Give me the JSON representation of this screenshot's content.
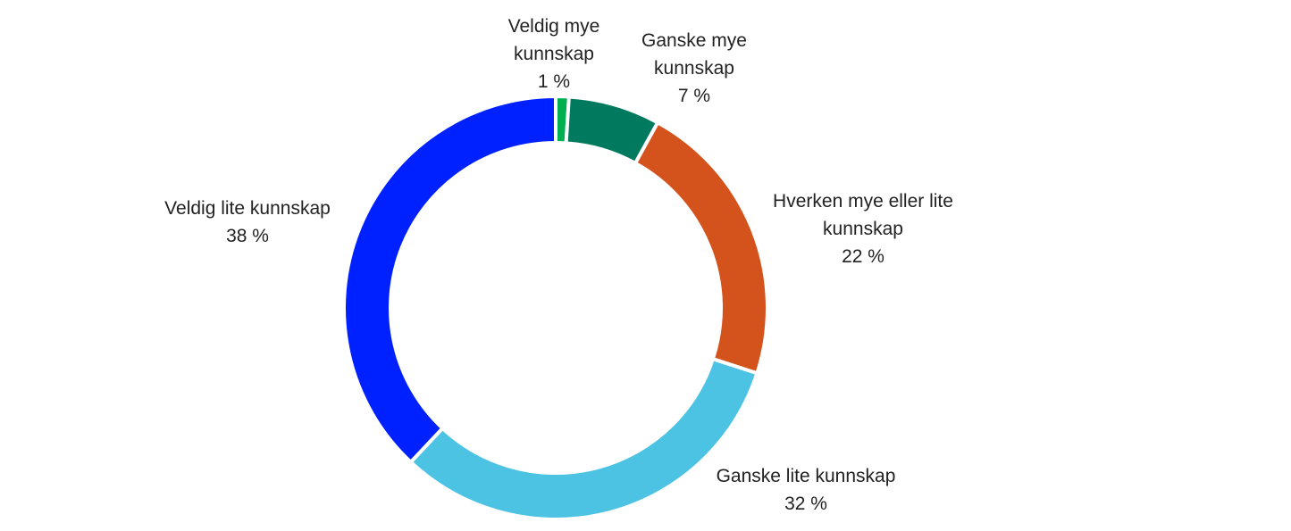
{
  "chart_data": {
    "type": "donut",
    "categories": [
      "Veldig mye kunnskap",
      "Ganske mye kunnskap",
      "Hverken mye eller lite kunnskap",
      "Ganske lite kunnskap",
      "Veldig lite kunnskap"
    ],
    "values": [
      1,
      7,
      22,
      32,
      38
    ],
    "value_labels": [
      "1 %",
      "7 %",
      "22 %",
      "32 %",
      "38 %"
    ],
    "colors": [
      "#00b050",
      "#007a5e",
      "#d4521b",
      "#4dc3e3",
      "#0021ff"
    ]
  }
}
